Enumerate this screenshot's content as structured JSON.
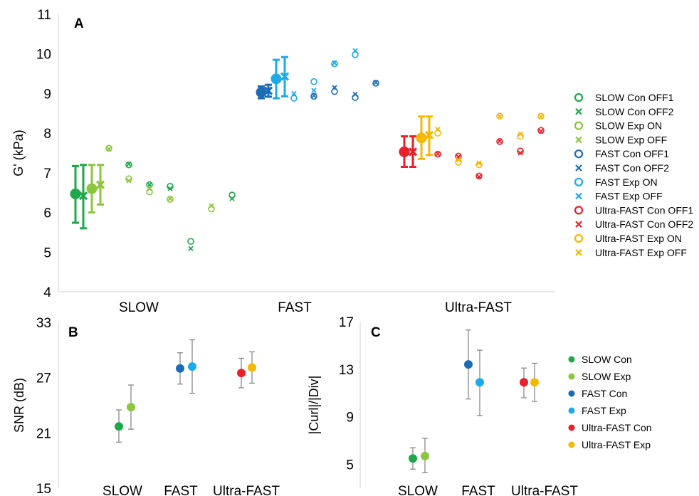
{
  "colors": {
    "slow_con": "#1fa84a",
    "slow_exp": "#8cc63f",
    "fast_con": "#1b6bb5",
    "fast_exp": "#1eaae6",
    "ultra_con": "#e8202a",
    "ultra_exp": "#f5b800"
  },
  "chart_data": [
    {
      "panel": "A",
      "type": "scatter",
      "ylabel": "G' (kPa)",
      "ylim": [
        4,
        11
      ],
      "yticks": [
        4,
        5,
        6,
        7,
        8,
        9,
        10,
        11
      ],
      "categories": [
        "SLOW",
        "FAST",
        "Ultra-FAST"
      ],
      "legend_position": "right",
      "summary": [
        {
          "group": "SLOW",
          "series": "Con",
          "marker": "dot",
          "mean": 6.47,
          "err_low": 5.74,
          "err_high": 7.17
        },
        {
          "group": "SLOW",
          "series": "Con",
          "marker": "x",
          "mean": 6.42,
          "err_low": 5.6,
          "err_high": 7.2
        },
        {
          "group": "SLOW",
          "series": "Exp",
          "marker": "dot",
          "mean": 6.6,
          "err_low": 6.0,
          "err_high": 7.2
        },
        {
          "group": "SLOW",
          "series": "Exp",
          "marker": "x",
          "mean": 6.7,
          "err_low": 6.2,
          "err_high": 7.2
        },
        {
          "group": "FAST",
          "series": "Con",
          "marker": "dot",
          "mean": 9.03,
          "err_low": 8.88,
          "err_high": 9.18
        },
        {
          "group": "FAST",
          "series": "Con",
          "marker": "x",
          "mean": 9.07,
          "err_low": 8.92,
          "err_high": 9.22
        },
        {
          "group": "FAST",
          "series": "Exp",
          "marker": "dot",
          "mean": 9.37,
          "err_low": 8.88,
          "err_high": 9.85
        },
        {
          "group": "FAST",
          "series": "Exp",
          "marker": "x",
          "mean": 9.43,
          "err_low": 8.93,
          "err_high": 9.92
        },
        {
          "group": "Ultra-FAST",
          "series": "Con",
          "marker": "dot",
          "mean": 7.53,
          "err_low": 7.15,
          "err_high": 7.92
        },
        {
          "group": "Ultra-FAST",
          "series": "Con",
          "marker": "x",
          "mean": 7.53,
          "err_low": 7.15,
          "err_high": 7.92
        },
        {
          "group": "Ultra-FAST",
          "series": "Exp",
          "marker": "dot",
          "mean": 7.88,
          "err_low": 7.35,
          "err_high": 8.42
        },
        {
          "group": "Ultra-FAST",
          "series": "Exp",
          "marker": "x",
          "mean": 7.95,
          "err_low": 7.45,
          "err_high": 8.42
        }
      ],
      "individual": [
        {
          "group": "SLOW",
          "subject": 1,
          "con_off1": 7.2,
          "con_off2": 7.22,
          "exp_on": 7.62,
          "exp_off": 7.6
        },
        {
          "group": "SLOW",
          "subject": 2,
          "con_off1": 6.7,
          "con_off2": 6.7,
          "exp_on": 6.85,
          "exp_off": 6.8
        },
        {
          "group": "SLOW",
          "subject": 3,
          "con_off1": 6.66,
          "con_off2": 6.6,
          "exp_on": 6.52,
          "exp_off": 6.6
        },
        {
          "group": "SLOW",
          "subject": 4,
          "con_off1": 5.27,
          "con_off2": 5.09,
          "exp_on": 6.33,
          "exp_off": 6.35
        },
        {
          "group": "SLOW",
          "subject": 5,
          "con_off1": 6.44,
          "con_off2": 6.35,
          "exp_on": 6.09,
          "exp_off": 6.17
        },
        {
          "group": "FAST",
          "subject": 1,
          "con_off1": 8.93,
          "con_off2": 8.95,
          "exp_on": 8.88,
          "exp_off": 9.0
        },
        {
          "group": "FAST",
          "subject": 2,
          "con_off1": 9.05,
          "con_off2": 9.15,
          "exp_on": 9.3,
          "exp_off": 9.08
        },
        {
          "group": "FAST",
          "subject": 3,
          "con_off1": 8.9,
          "con_off2": 8.98,
          "exp_on": 9.75,
          "exp_off": 9.77
        },
        {
          "group": "FAST",
          "subject": 4,
          "con_off1": 9.26,
          "con_off2": 9.28,
          "exp_on": 9.98,
          "exp_off": 10.08
        },
        {
          "group": "Ultra-FAST",
          "subject": 1,
          "con_off1": 7.47,
          "con_off2": 7.48,
          "exp_on": 8.0,
          "exp_off": 8.1
        },
        {
          "group": "Ultra-FAST",
          "subject": 2,
          "con_off1": 7.42,
          "con_off2": 7.4,
          "exp_on": 7.27,
          "exp_off": 7.33
        },
        {
          "group": "Ultra-FAST",
          "subject": 3,
          "con_off1": 6.92,
          "con_off2": 6.9,
          "exp_on": 7.2,
          "exp_off": 7.25
        },
        {
          "group": "Ultra-FAST",
          "subject": 4,
          "con_off1": 7.79,
          "con_off2": 7.8,
          "exp_on": 8.43,
          "exp_off": 8.42
        },
        {
          "group": "Ultra-FAST",
          "subject": 5,
          "con_off1": 7.55,
          "con_off2": 7.5,
          "exp_on": 7.92,
          "exp_off": 7.98
        },
        {
          "group": "Ultra-FAST",
          "subject": 6,
          "con_off1": 8.07,
          "con_off2": 8.05,
          "exp_on": 8.43,
          "exp_off": 8.42
        }
      ],
      "legend": [
        {
          "label": "SLOW Con OFF1",
          "marker": "circle",
          "color_key": "slow_con"
        },
        {
          "label": "SLOW Con OFF2",
          "marker": "x",
          "color_key": "slow_con"
        },
        {
          "label": "SLOW Exp ON",
          "marker": "circle",
          "color_key": "slow_exp"
        },
        {
          "label": "SLOW Exp OFF",
          "marker": "x",
          "color_key": "slow_exp"
        },
        {
          "label": "FAST Con OFF1",
          "marker": "circle",
          "color_key": "fast_con"
        },
        {
          "label": "FAST Con OFF2",
          "marker": "x",
          "color_key": "fast_con"
        },
        {
          "label": "FAST Exp ON",
          "marker": "circle",
          "color_key": "fast_exp"
        },
        {
          "label": "FAST Exp OFF",
          "marker": "x",
          "color_key": "fast_exp"
        },
        {
          "label": "Ultra-FAST Con OFF1",
          "marker": "circle",
          "color_key": "ultra_con"
        },
        {
          "label": "Ultra-FAST Con OFF2",
          "marker": "x",
          "color_key": "ultra_con"
        },
        {
          "label": "Ultra-FAST Exp ON",
          "marker": "circle",
          "color_key": "ultra_exp"
        },
        {
          "label": "Ultra-FAST Exp OFF",
          "marker": "x",
          "color_key": "ultra_exp"
        }
      ]
    },
    {
      "panel": "B",
      "type": "scatter",
      "ylabel": "SNR (dB)",
      "ylim": [
        15,
        33
      ],
      "yticks": [
        15,
        21,
        27,
        33
      ],
      "categories": [
        "SLOW",
        "FAST",
        "Ultra-FAST"
      ],
      "points": [
        {
          "group": "SLOW",
          "series": "SLOW Con",
          "color_key": "slow_con",
          "mean": 21.7,
          "err_low": 20.0,
          "err_high": 23.5
        },
        {
          "group": "SLOW",
          "series": "SLOW Exp",
          "color_key": "slow_exp",
          "mean": 23.8,
          "err_low": 21.4,
          "err_high": 26.2
        },
        {
          "group": "FAST",
          "series": "FAST Con",
          "color_key": "fast_con",
          "mean": 28.0,
          "err_low": 26.3,
          "err_high": 29.7
        },
        {
          "group": "FAST",
          "series": "FAST Exp",
          "color_key": "fast_exp",
          "mean": 28.2,
          "err_low": 25.3,
          "err_high": 31.1
        },
        {
          "group": "Ultra-FAST",
          "series": "Ultra-FAST Con",
          "color_key": "ultra_con",
          "mean": 27.5,
          "err_low": 25.9,
          "err_high": 29.1
        },
        {
          "group": "Ultra-FAST",
          "series": "Ultra-FAST Exp",
          "color_key": "ultra_exp",
          "mean": 28.1,
          "err_low": 26.4,
          "err_high": 29.8
        }
      ]
    },
    {
      "panel": "C",
      "type": "scatter",
      "ylabel": "|Curl|/|Div|",
      "ylim": [
        3,
        17
      ],
      "yticks": [
        5,
        9,
        13,
        17
      ],
      "categories": [
        "SLOW",
        "FAST",
        "Ultra-FAST"
      ],
      "legend_position": "right",
      "points": [
        {
          "group": "SLOW",
          "series": "SLOW Con",
          "color_key": "slow_con",
          "mean": 5.5,
          "err_low": 4.6,
          "err_high": 6.4
        },
        {
          "group": "SLOW",
          "series": "SLOW Exp",
          "color_key": "slow_exp",
          "mean": 5.7,
          "err_low": 4.3,
          "err_high": 7.2
        },
        {
          "group": "FAST",
          "series": "FAST Con",
          "color_key": "fast_con",
          "mean": 13.4,
          "err_low": 10.5,
          "err_high": 16.3
        },
        {
          "group": "FAST",
          "series": "FAST Exp",
          "color_key": "fast_exp",
          "mean": 11.9,
          "err_low": 9.1,
          "err_high": 14.6
        },
        {
          "group": "Ultra-FAST",
          "series": "Ultra-FAST Con",
          "color_key": "ultra_con",
          "mean": 11.9,
          "err_low": 10.6,
          "err_high": 13.1
        },
        {
          "group": "Ultra-FAST",
          "series": "Ultra-FAST Exp",
          "color_key": "ultra_exp",
          "mean": 11.9,
          "err_low": 10.3,
          "err_high": 13.5
        }
      ],
      "legend": [
        {
          "label": "SLOW Con",
          "color_key": "slow_con"
        },
        {
          "label": "SLOW Exp",
          "color_key": "slow_exp"
        },
        {
          "label": "FAST Con",
          "color_key": "fast_con"
        },
        {
          "label": "FAST Exp",
          "color_key": "fast_exp"
        },
        {
          "label": "Ultra-FAST Con",
          "color_key": "ultra_con"
        },
        {
          "label": "Ultra-FAST Exp",
          "color_key": "ultra_exp"
        }
      ]
    }
  ]
}
